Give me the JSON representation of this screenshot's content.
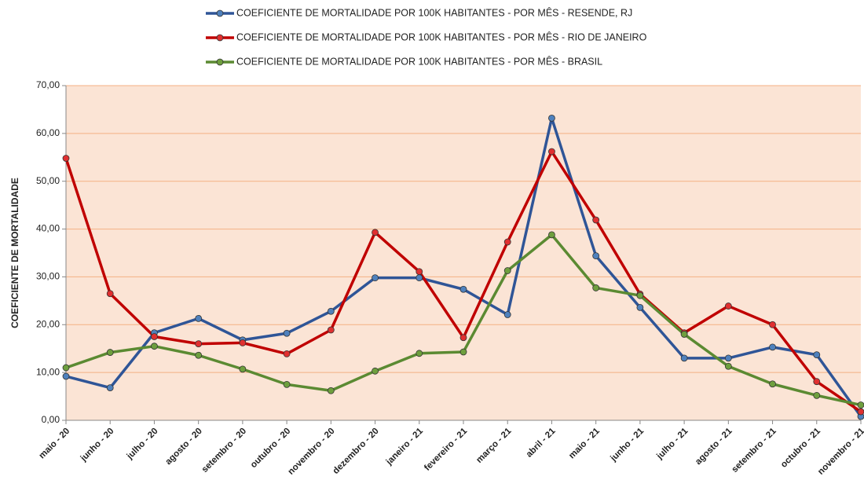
{
  "chart_data": {
    "type": "line",
    "y_label": "COEFICIENTE DE MORTALIDADE",
    "categories": [
      "maio - 20",
      "junho - 20",
      "julho - 20",
      "agosto - 20",
      "setembro - 20",
      "outubro - 20",
      "novembro - 20",
      "dezembro - 20",
      "janeiro - 21",
      "fevereiro - 21",
      "março - 21",
      "abril - 21",
      "maio - 21",
      "junho - 21",
      "julho - 21",
      "agosto - 21",
      "setembro - 21",
      "octubro - 21",
      "novembro - 21"
    ],
    "series": [
      {
        "name": "COEFICIENTE DE MORTALIDADE POR 100K HABITANTES - POR MÊS - RESENDE, RJ",
        "color": "#2f5597",
        "marker": "#4f81bd",
        "values": [
          9.2,
          6.8,
          18.3,
          21.3,
          16.8,
          18.2,
          22.8,
          29.8,
          29.8,
          27.4,
          22.1,
          63.2,
          34.4,
          23.6,
          13.0,
          13.0,
          15.3,
          13.7,
          0.8
        ]
      },
      {
        "name": "COEFICIENTE DE MORTALIDADE POR 100K HABITANTES - POR MÊS - RIO DE JANEIRO",
        "color": "#c00000",
        "marker": "#e03030",
        "values": [
          54.8,
          26.5,
          17.5,
          16.0,
          16.2,
          13.9,
          18.9,
          39.3,
          31.1,
          17.3,
          37.3,
          56.2,
          41.9,
          26.4,
          18.3,
          23.9,
          20.0,
          8.1,
          1.8
        ]
      },
      {
        "name": "COEFICIENTE DE MORTALIDADE POR 100K HABITANTES - POR MÊS - BRASIL",
        "color": "#5b8a32",
        "marker": "#6e9f3e",
        "values": [
          11.0,
          14.2,
          15.5,
          13.6,
          10.7,
          7.5,
          6.2,
          10.3,
          14.0,
          14.3,
          31.3,
          38.8,
          27.7,
          26.1,
          18.0,
          11.3,
          7.6,
          5.2,
          3.2
        ]
      }
    ],
    "ylim": [
      0,
      70
    ],
    "yticks": [
      {
        "value": 0,
        "label": "0,00"
      },
      {
        "value": 10,
        "label": "10,00"
      },
      {
        "value": 20,
        "label": "20,00"
      },
      {
        "value": 30,
        "label": "30,00"
      },
      {
        "value": 40,
        "label": "40,00"
      },
      {
        "value": 50,
        "label": "50,00"
      },
      {
        "value": 60,
        "label": "60,00"
      },
      {
        "value": 70,
        "label": "70,00"
      }
    ],
    "grid": true,
    "plot_background": "#fbe4d5",
    "grid_color": "#f4b183"
  }
}
